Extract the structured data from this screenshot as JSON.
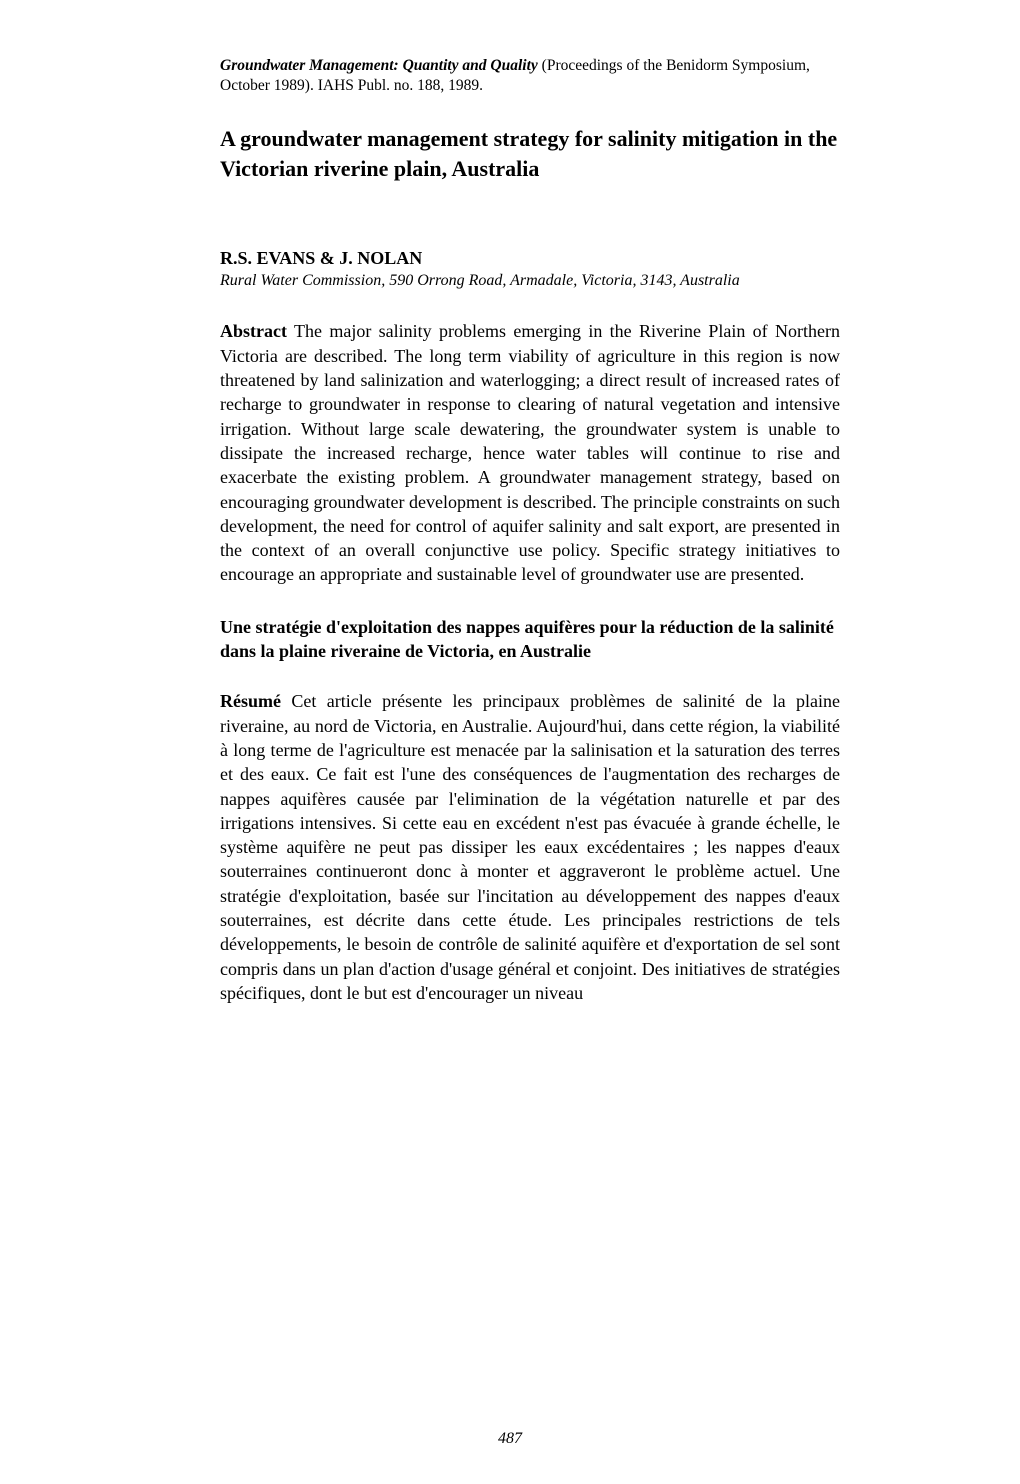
{
  "header": {
    "journal_title": "Groundwater Management: Quantity and Quality",
    "proceedings": " (Proceedings of the Benidorm Symposium, October 1989). IAHS Publ. no. 188, 1989."
  },
  "title": "A groundwater management strategy for salinity mitigation in the Victorian riverine plain, Australia",
  "authors": "R.S. EVANS & J. NOLAN",
  "affiliation": "Rural Water Commission, 590 Orrong Road, Armadale, Victoria, 3143, Australia",
  "abstract": {
    "label": "Abstract",
    "text": "   The major salinity problems emerging in the Riverine Plain of Northern Victoria are described.  The long term viability of agriculture in this region is now threatened by land salinization and waterlogging; a direct result of increased rates of recharge to groundwater in response to clearing of natural vegetation and intensive irrigation.  Without large scale dewatering, the groundwater system is unable to dissipate the increased recharge, hence water tables will continue to rise and exacerbate the existing problem.  A groundwater management strategy, based on encouraging groundwater development is described.  The principle constraints on such development, the need for control of aquifer salinity and salt export, are presented in the context of an overall conjunctive use policy.  Specific strategy initiatives to encourage an appropriate and sustainable level of groundwater use are presented."
  },
  "french_title": "Une stratégie d'exploitation des nappes aquifères pour la réduction de la salinité dans la plaine riveraine de Victoria, en Australie",
  "resume": {
    "label": "Résumé",
    "text": "    Cet article présente les principaux problèmes de salinité de la plaine riveraine, au nord de Victoria, en Australie. Aujourd'hui, dans cette région, la viabilité à long terme de l'agriculture est menacée par la salinisation et la saturation des terres et des eaux. Ce fait est l'une des conséquences de l'augmentation des recharges de nappes aquifères causée par l'elimination de la végétation naturelle et par des irrigations intensives. Si cette eau en excédent n'est pas évacuée à grande échelle, le système aquifère ne peut pas dissiper les eaux excédentaires ; les nappes d'eaux souterraines continueront donc à monter et aggraveront le problème actuel. Une stratégie d'exploitation, basée sur l'incitation au développement des nappes d'eaux souterraines, est décrite dans cette étude. Les principales restrictions de tels développements, le besoin de contrôle de salinité aquifère et d'exportation de sel sont compris dans un plan d'action d'usage général et conjoint. Des initiatives de stratégies spécifiques, dont le but est d'encourager un niveau"
  },
  "page_number": "487"
}
